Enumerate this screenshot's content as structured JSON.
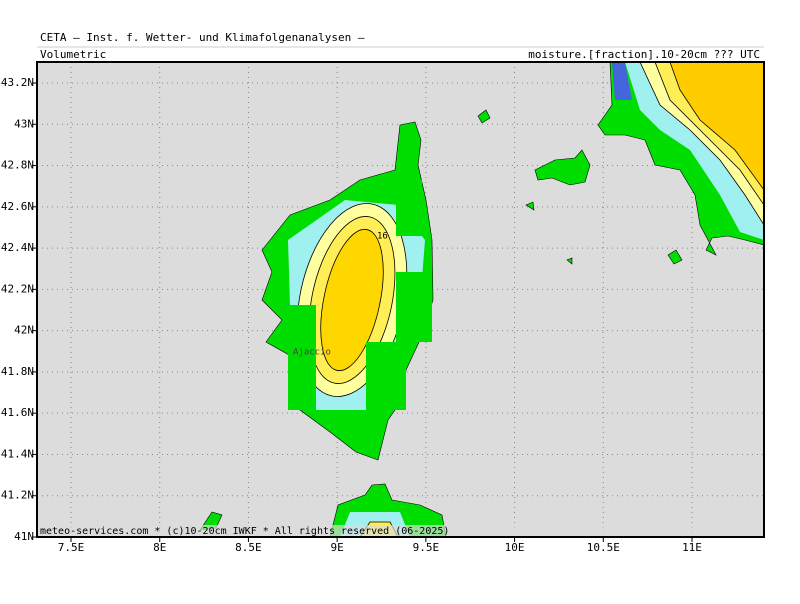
{
  "header": {
    "title": "CETA — Inst. f. Wetter- und Klimafolgenanalysen —",
    "left_label": "Volumetric",
    "right_label": "moisture.[fraction].10-20cm ??? UTC"
  },
  "map": {
    "lon_ticks": [
      {
        "value": 7.5,
        "label": "7.5E"
      },
      {
        "value": 8,
        "label": "8E"
      },
      {
        "value": 8.5,
        "label": "8.5E"
      },
      {
        "value": 9,
        "label": "9E"
      },
      {
        "value": 9.5,
        "label": "9.5E"
      },
      {
        "value": 10,
        "label": "10E"
      },
      {
        "value": 10.5,
        "label": "10.5E"
      },
      {
        "value": 11,
        "label": "11E"
      }
    ],
    "lat_ticks": [
      {
        "value": 41,
        "label": "41N"
      },
      {
        "value": 41.2,
        "label": "41.2N"
      },
      {
        "value": 41.4,
        "label": "41.4N"
      },
      {
        "value": 41.6,
        "label": "41.6N"
      },
      {
        "value": 41.8,
        "label": "41.8N"
      },
      {
        "value": 42,
        "label": "42N"
      },
      {
        "value": 42.2,
        "label": "42.2N"
      },
      {
        "value": 42.4,
        "label": "42.4N"
      },
      {
        "value": 42.6,
        "label": "42.6N"
      },
      {
        "value": 42.8,
        "label": "42.8N"
      },
      {
        "value": 43,
        "label": "43N"
      },
      {
        "value": 43.2,
        "label": "43.2N"
      }
    ],
    "city": "Ajaccio",
    "contour_label": "16",
    "footer": "meteo-services.com * (c)10-20cm IWKF * All rights reserved (06-2025)"
  }
}
